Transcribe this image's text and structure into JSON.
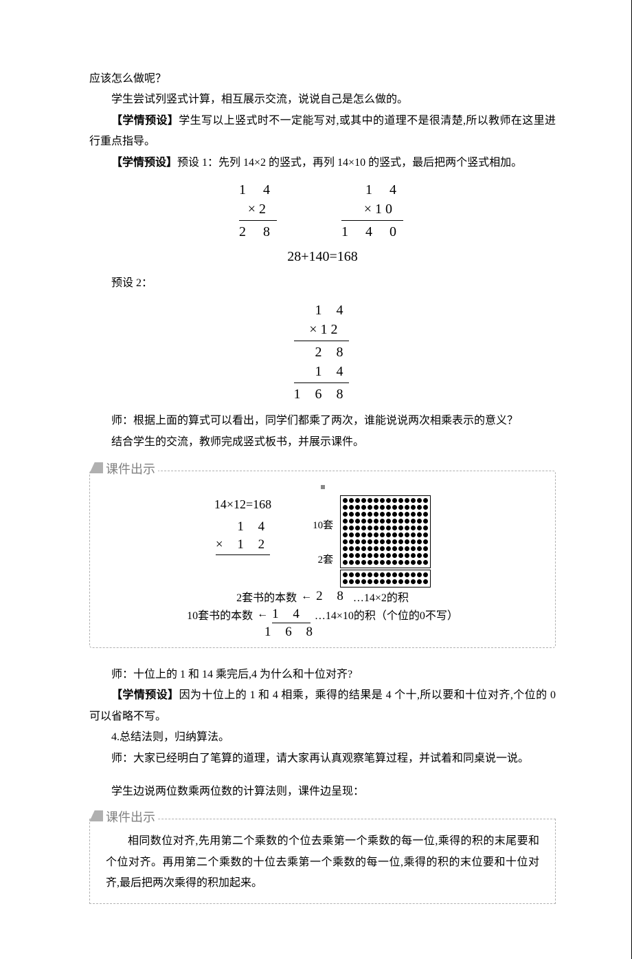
{
  "p1": "应该怎么做呢？",
  "p2": "学生尝试列竖式计算，相互展示交流，说说自己是怎么做的。",
  "p3_pre": "【学情预设】",
  "p3": "学生写以上竖式时不一定能写对,或其中的道理不是很清楚,所以教师在这里进行重点指导。",
  "p4_pre": "【学情预设】",
  "p4": "预设 1：先列 14×2 的竖式，再列 14×10 的竖式，最后把两个竖式相加。",
  "calc1": {
    "left": {
      "top": "1 4",
      "mid": "×     2",
      "bot": "2 8"
    },
    "right": {
      "top": "1 4",
      "mid": "× 1 0",
      "bot": "1 4 0"
    },
    "sum": "28+140=168"
  },
  "p5": "预设 2：",
  "calc2": {
    "r1": "1 4",
    "r2": "×  1 2",
    "r3": "2 8",
    "r4": "1 4 ",
    "r5": "1 6 8"
  },
  "p6": "师：根据上面的算式可以看出，同学们都乘了两次，谁能说说两次相乘表示的意义？",
  "p7": "结合学生的交流，教师完成竖式板书，并展示课件。",
  "callout1": {
    "label": "课件出示",
    "eq": "14×12=168",
    "set10": "10套",
    "set2": "2套",
    "v": {
      "r1": "1 4",
      "r2": "×  1 2",
      "r3": "2 8",
      "r4": "1 4",
      "r5": "1 6 8"
    },
    "ann1_l": "2套书的本数",
    "ann1_a": "←",
    "ann1_r": "…14×2的积",
    "ann2_l": "10套书的本数",
    "ann2_a": "←",
    "ann2_r": "…14×10的积（个位的0不写）"
  },
  "p8": "师：十位上的 1 和 14 乘完后,4 为什么和十位对齐?",
  "p9_pre": "【学情预设】",
  "p9": "因为十位上的 1 和 4 相乘，乘得的结果是 4 个十,所以要和十位对齐,个位的 0 可以省略不写。",
  "p10": "4.总结法则，归纳算法。",
  "p11": "师：大家已经明白了笔算的道理，请大家再认真观察笔算过程，并试着和同桌说一说。",
  "p12": "学生边说两位数乘两位数的计算法则，课件边呈现：",
  "callout2": {
    "label": "课件出示",
    "text": "相同数位对齐,先用第二个乘数的个位去乘第一个乘数的每一位,乘得的积的末尾要和个位对齐。再用第二个乘数的十位去乘第一个乘数的每一位,乘得的积的末位要和十位对齐,最后把两次乘得的积加起来。"
  },
  "colors": {
    "text": "#000000",
    "bg": "#ffffff",
    "dash": "#b0b0b0",
    "gray": "#808080"
  }
}
